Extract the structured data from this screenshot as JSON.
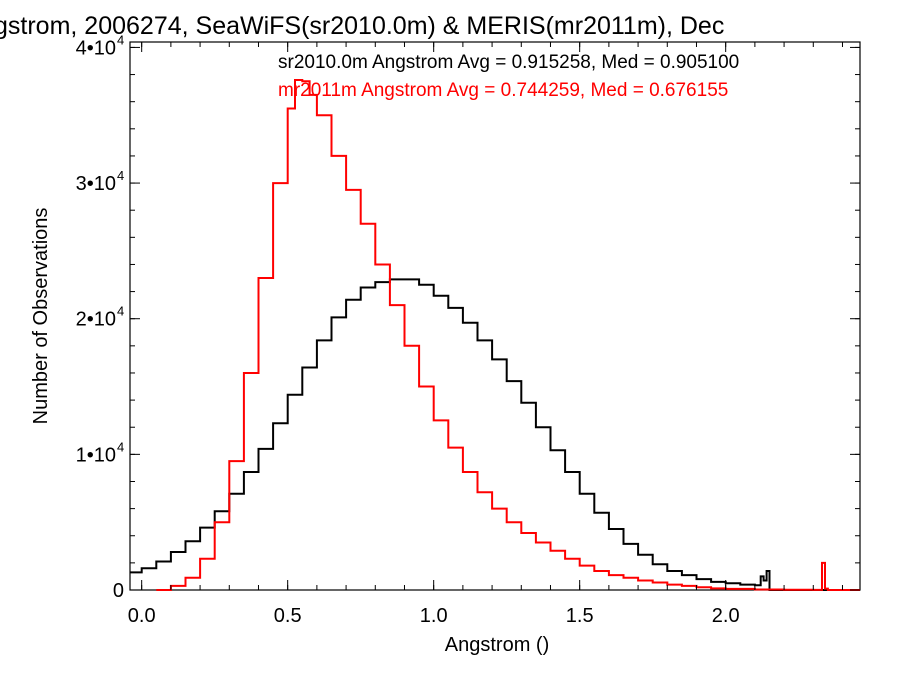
{
  "chart_data": {
    "type": "line",
    "title": "gstrom, 2006274, SeaWiFS(sr2010.0m) & MERIS(mr2011m), Dec",
    "xlabel": "Angstrom ()",
    "ylabel": "Number of Observations",
    "xlim": [
      -0.04,
      2.46
    ],
    "ylim": [
      0,
      40400
    ],
    "x_ticks": [
      {
        "value": 0.0,
        "label": "0.0"
      },
      {
        "value": 0.5,
        "label": "0.5"
      },
      {
        "value": 1.0,
        "label": "1.0"
      },
      {
        "value": 1.5,
        "label": "1.5"
      },
      {
        "value": 2.0,
        "label": "2.0"
      }
    ],
    "y_ticks": [
      {
        "value": 0,
        "label": "0",
        "exp": ""
      },
      {
        "value": 10000,
        "label": "1•10",
        "exp": "4"
      },
      {
        "value": 20000,
        "label": "2•10",
        "exp": "4"
      },
      {
        "value": 30000,
        "label": "3•10",
        "exp": "4"
      },
      {
        "value": 40000,
        "label": "4•10",
        "exp": "4"
      }
    ],
    "annotations": [
      {
        "text": "sr2010.0m Angstrom Avg = 0.915258, Med = 0.905100",
        "color": "#000000"
      },
      {
        "text": "mr2011m Angstrom Avg = 0.744259, Med = 0.676155",
        "color": "#ff0000"
      }
    ],
    "grid": false,
    "series": [
      {
        "name": "sr2010.0m",
        "color": "#000000",
        "x": [
          -0.04,
          0.0,
          0.05,
          0.1,
          0.15,
          0.2,
          0.25,
          0.3,
          0.35,
          0.4,
          0.45,
          0.5,
          0.55,
          0.6,
          0.65,
          0.7,
          0.75,
          0.8,
          0.85,
          0.9,
          0.95,
          1.0,
          1.05,
          1.1,
          1.15,
          1.2,
          1.25,
          1.3,
          1.35,
          1.4,
          1.45,
          1.5,
          1.55,
          1.6,
          1.65,
          1.7,
          1.75,
          1.8,
          1.85,
          1.9,
          1.95,
          2.0,
          2.05,
          2.1,
          2.12,
          2.13,
          2.14,
          2.15,
          2.2,
          2.25,
          2.3,
          2.35
        ],
        "y": [
          1300,
          1600,
          2100,
          2800,
          3600,
          4600,
          5800,
          7100,
          8700,
          10400,
          12300,
          14400,
          16400,
          18400,
          20100,
          21400,
          22300,
          22700,
          22900,
          22900,
          22500,
          21700,
          20800,
          19700,
          18400,
          17000,
          15400,
          13800,
          12000,
          10300,
          8700,
          7100,
          5700,
          4500,
          3400,
          2600,
          1900,
          1400,
          1100,
          800,
          600,
          500,
          400,
          350,
          1000,
          700,
          1400,
          0,
          0,
          0,
          0,
          0
        ]
      },
      {
        "name": "mr2011m",
        "color": "#ff0000",
        "x": [
          0.05,
          0.1,
          0.15,
          0.2,
          0.25,
          0.3,
          0.35,
          0.4,
          0.45,
          0.5,
          0.525,
          0.55,
          0.575,
          0.6,
          0.65,
          0.7,
          0.75,
          0.8,
          0.85,
          0.9,
          0.95,
          1.0,
          1.05,
          1.1,
          1.15,
          1.2,
          1.25,
          1.3,
          1.35,
          1.4,
          1.45,
          1.5,
          1.55,
          1.6,
          1.65,
          1.7,
          1.75,
          1.8,
          1.85,
          1.9,
          1.95,
          2.0,
          2.1,
          2.2,
          2.3,
          2.33,
          2.34,
          2.35,
          2.45
        ],
        "y": [
          0,
          300,
          900,
          2300,
          5000,
          9500,
          16000,
          23000,
          30000,
          35500,
          37600,
          37500,
          36500,
          35000,
          32000,
          29500,
          27000,
          24000,
          21000,
          18000,
          15000,
          12500,
          10500,
          8700,
          7200,
          6000,
          5000,
          4200,
          3500,
          2900,
          2300,
          1800,
          1400,
          1100,
          900,
          700,
          550,
          400,
          300,
          200,
          120,
          80,
          40,
          20,
          10,
          2000,
          100,
          0,
          0
        ]
      }
    ]
  }
}
